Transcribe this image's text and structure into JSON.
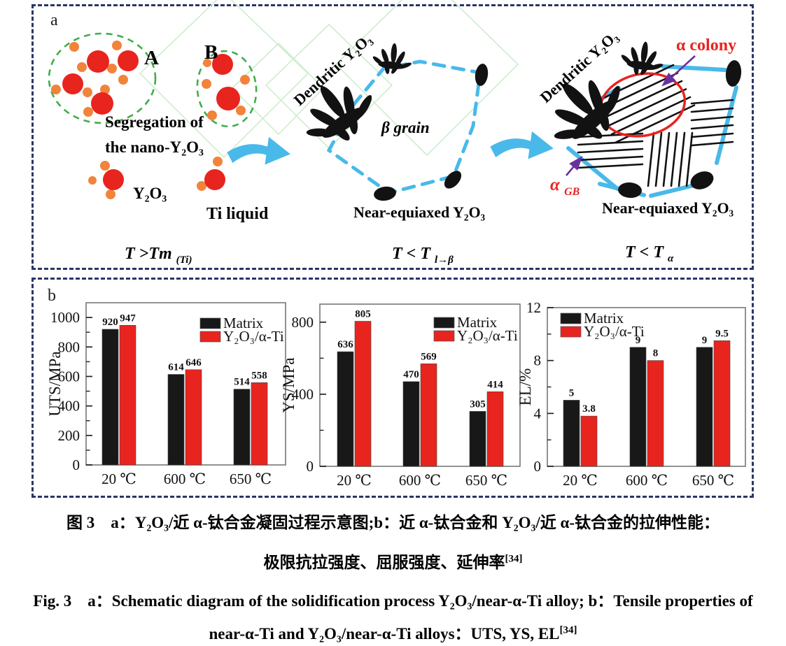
{
  "panel_a": {
    "label": "a",
    "cluster_a_label": "A",
    "cluster_b_label": "B",
    "segregation_line1": "Segregation of",
    "segregation_line2": "the  nano-Y₂O₃",
    "y2o3_label": "Y₂O₃",
    "ti_liquid_label": "Ti liquid",
    "stage1_temp": {
      "main": "T >Tm",
      "sub": "(Ti)"
    },
    "stage2": {
      "dendritic_label": "Dendritic Y₂O₃",
      "beta_grain_label": "β grain",
      "near_equiaxed_label": "Near-equiaxed Y₂O₃",
      "temp": {
        "main": "T < T",
        "sub": "l→β"
      }
    },
    "stage3": {
      "dendritic_label": "Dendritic Y₂O₃",
      "alpha_colony_label": "α colony",
      "alpha_gb": {
        "main": "α",
        "sub": "GB"
      },
      "near_equiaxed_label": "Near-equiaxed Y₂O₃",
      "temp": {
        "main": "T < T",
        "sub": "α"
      }
    }
  },
  "panel_b": {
    "label": "b"
  },
  "chart_data": [
    {
      "type": "bar",
      "title": "",
      "xlabel": "",
      "ylabel": "UTS/MPa",
      "categories": [
        "20 ℃",
        "600 ℃",
        "650 ℃"
      ],
      "series": [
        {
          "name": "Matrix",
          "color": "#181818",
          "values": [
            920,
            614,
            514
          ]
        },
        {
          "name": "Y₂O₃/α-Ti",
          "color": "#e8241f",
          "values": [
            947,
            646,
            558
          ]
        }
      ],
      "ylim": [
        0,
        1100
      ],
      "yticks": [
        0,
        200,
        400,
        600,
        800,
        1000
      ],
      "minor_tick_step": 100,
      "legend_position": "top-right",
      "grid": false
    },
    {
      "type": "bar",
      "title": "",
      "xlabel": "",
      "ylabel": "YS/MPa",
      "categories": [
        "20 ℃",
        "600 ℃",
        "650 ℃"
      ],
      "series": [
        {
          "name": "Matrix",
          "color": "#181818",
          "values": [
            636,
            470,
            305
          ]
        },
        {
          "name": "Y₂O₃/α-Ti",
          "color": "#e8241f",
          "values": [
            805,
            569,
            414
          ]
        }
      ],
      "ylim": [
        0,
        900
      ],
      "yticks": [
        0,
        400,
        800
      ],
      "minor_tick_step": 200,
      "legend_position": "top-right",
      "grid": false
    },
    {
      "type": "bar",
      "title": "",
      "xlabel": "",
      "ylabel": "EL/%",
      "categories": [
        "20 ℃",
        "600 ℃",
        "650 ℃"
      ],
      "series": [
        {
          "name": "Matrix",
          "color": "#181818",
          "values": [
            5,
            9,
            9
          ]
        },
        {
          "name": "Y₂O₃/α-Ti",
          "color": "#e8241f",
          "values": [
            3.8,
            8,
            9.5
          ]
        }
      ],
      "ylim": [
        0,
        12
      ],
      "yticks": [
        0,
        4,
        8,
        12
      ],
      "minor_tick_step": 2,
      "legend_position": "top-left",
      "grid": false
    }
  ],
  "caption": {
    "zh_line1": "图 3　a：Y₂O₃/近 α-钛合金凝固过程示意图;b：近 α-钛合金和 Y₂O₃/近 α-钛合金的拉伸性能：",
    "zh_line2": "极限抗拉强度、屈服强度、延伸率",
    "zh_line2_sup": "[34]",
    "en_line1": "Fig. 3　a：Schematic diagram of the solidification process Y₂O₃/near-α-Ti alloy; b：Tensile properties of",
    "en_line2": "near-α-Ti and Y₂O₃/near-α-Ti alloys：UTS, YS, EL",
    "en_line2_sup": "[34]"
  },
  "colors": {
    "border_navy": "#2a3566",
    "bar_black": "#181818",
    "bar_red": "#e8241f",
    "schematic_blue": "#49b9ea",
    "green_dashed": "#3fae49",
    "pale_green": "#cdedcd",
    "orange": "#f2833b",
    "red": "#e8241f",
    "purple": "#6a30a0"
  }
}
